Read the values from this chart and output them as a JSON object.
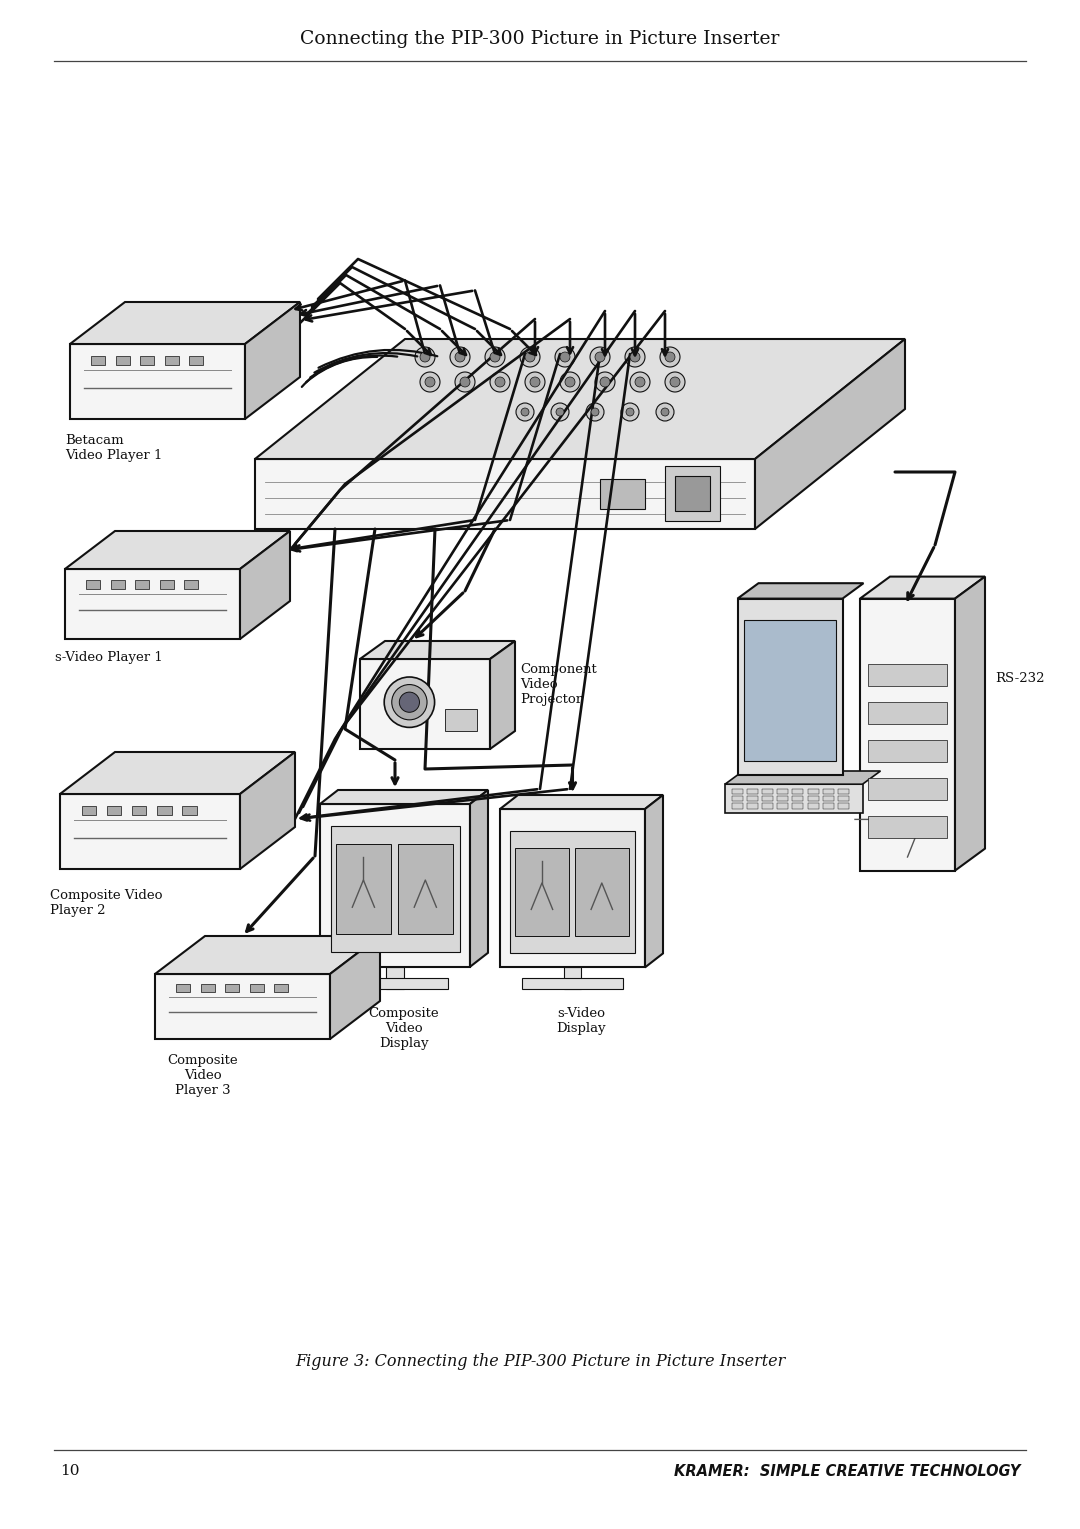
{
  "title": "Connecting the PIP-300 Picture in Picture Inserter",
  "figure_caption": "Figure 3: Connecting the PIP-300 Picture in Picture Inserter",
  "page_number": "10",
  "footer_right": "KRAMER:  SIMPLE CREATIVE TECHNOLOGY",
  "bg_color": "#ffffff",
  "title_fontsize": 13.5,
  "caption_fontsize": 11.5,
  "footer_fontsize": 10.5,
  "page_num_fontsize": 11,
  "label_fontsize": 9.5,
  "line_color": "#111111",
  "fill_light": "#f5f5f5",
  "fill_mid": "#e0e0e0",
  "fill_dark": "#c0c0c0",
  "labels": {
    "betacam": "Betacam\nVideo Player 1",
    "svideo1": "s-Video Player 1",
    "composite2": "Composite Video\nPlayer 2",
    "composite3": "Composite\nVideo\nPlayer 3",
    "composite_display": "Composite\nVideo\nDisplay",
    "svideo_display": "s-Video\nDisplay",
    "component_proj": "Component\nVideo\nProjector",
    "rs232": "RS-232"
  }
}
